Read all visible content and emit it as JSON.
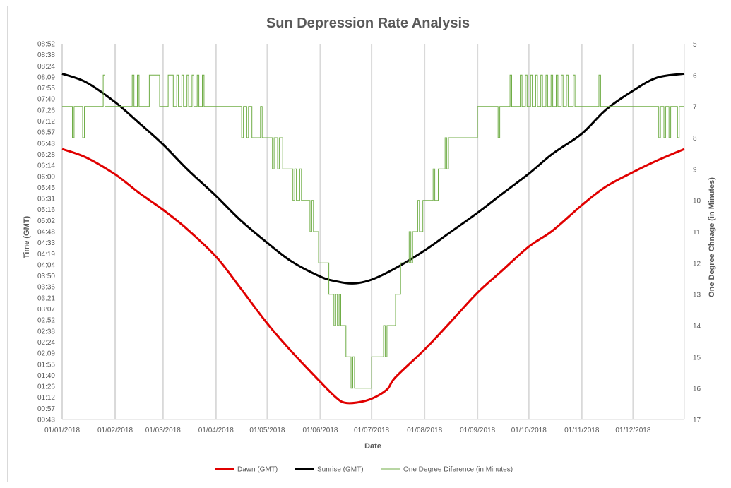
{
  "chart_data": {
    "type": "line",
    "title": "Sun Depression Rate Analysis",
    "xlabel": "Date",
    "ylabel_left": "Time (GMT)",
    "ylabel_right": "One Degree Chnage (in Minutes)",
    "x_ticks": [
      "01/01/2018",
      "01/02/2018",
      "01/03/2018",
      "01/04/2018",
      "01/05/2018",
      "01/06/2018",
      "01/07/2018",
      "01/08/2018",
      "01/09/2018",
      "01/10/2018",
      "01/11/2018",
      "01/12/2018"
    ],
    "y_left_ticks": [
      "08:52",
      "08:38",
      "08:24",
      "08:09",
      "07:55",
      "07:40",
      "07:26",
      "07:12",
      "06:57",
      "06:43",
      "06:28",
      "06:14",
      "06:00",
      "05:45",
      "05:31",
      "05:16",
      "05:02",
      "04:48",
      "04:33",
      "04:19",
      "04:04",
      "03:50",
      "03:36",
      "03:21",
      "03:07",
      "02:52",
      "02:38",
      "02:24",
      "02:09",
      "01:55",
      "01:40",
      "01:26",
      "01:12",
      "00:57",
      "00:43"
    ],
    "y_right_ticks": [
      "5",
      "6",
      "7",
      "8",
      "9",
      "10",
      "11",
      "12",
      "13",
      "14",
      "15",
      "16",
      "17"
    ],
    "y_right_range": [
      5,
      17
    ],
    "x_range_days": [
      1,
      365
    ],
    "grid": "vertical",
    "legend_position": "bottom",
    "series": [
      {
        "name": "Dawn (GMT)",
        "color": "#e00000",
        "axis": "left",
        "points": [
          [
            "01/01/2018",
            "06:35"
          ],
          [
            "15/01/2018",
            "06:24"
          ],
          [
            "01/02/2018",
            "06:02"
          ],
          [
            "15/02/2018",
            "05:38"
          ],
          [
            "01/03/2018",
            "05:16"
          ],
          [
            "15/03/2018",
            "04:51"
          ],
          [
            "01/04/2018",
            "04:15"
          ],
          [
            "15/04/2018",
            "03:35"
          ],
          [
            "01/05/2018",
            "02:48"
          ],
          [
            "15/05/2018",
            "02:12"
          ],
          [
            "01/06/2018",
            "01:32"
          ],
          [
            "10/06/2018",
            "01:12"
          ],
          [
            "15/06/2018",
            "01:05"
          ],
          [
            "22/06/2018",
            "01:05"
          ],
          [
            "01/07/2018",
            "01:10"
          ],
          [
            "10/07/2018",
            "01:22"
          ],
          [
            "15/07/2018",
            "01:38"
          ],
          [
            "01/08/2018",
            "02:14"
          ],
          [
            "15/08/2018",
            "02:47"
          ],
          [
            "01/09/2018",
            "03:28"
          ],
          [
            "15/09/2018",
            "03:56"
          ],
          [
            "01/10/2018",
            "04:28"
          ],
          [
            "15/10/2018",
            "04:49"
          ],
          [
            "01/11/2018",
            "05:22"
          ],
          [
            "15/11/2018",
            "05:46"
          ],
          [
            "01/12/2018",
            "06:05"
          ],
          [
            "15/12/2018",
            "06:20"
          ],
          [
            "31/12/2018",
            "06:35"
          ]
        ]
      },
      {
        "name": "Sunrise (GMT)",
        "color": "#000000",
        "axis": "left",
        "points": [
          [
            "01/01/2018",
            "08:13"
          ],
          [
            "15/01/2018",
            "08:02"
          ],
          [
            "01/02/2018",
            "07:36"
          ],
          [
            "15/02/2018",
            "07:09"
          ],
          [
            "01/03/2018",
            "06:41"
          ],
          [
            "15/03/2018",
            "06:09"
          ],
          [
            "01/04/2018",
            "05:34"
          ],
          [
            "15/04/2018",
            "05:03"
          ],
          [
            "01/05/2018",
            "04:33"
          ],
          [
            "15/05/2018",
            "04:09"
          ],
          [
            "01/06/2018",
            "03:49"
          ],
          [
            "10/06/2018",
            "03:43"
          ],
          [
            "20/06/2018",
            "03:40"
          ],
          [
            "01/07/2018",
            "03:45"
          ],
          [
            "15/07/2018",
            "04:00"
          ],
          [
            "01/08/2018",
            "04:23"
          ],
          [
            "15/08/2018",
            "04:45"
          ],
          [
            "01/09/2018",
            "05:12"
          ],
          [
            "15/09/2018",
            "05:36"
          ],
          [
            "01/10/2018",
            "06:03"
          ],
          [
            "15/10/2018",
            "06:29"
          ],
          [
            "01/11/2018",
            "06:55"
          ],
          [
            "15/11/2018",
            "07:26"
          ],
          [
            "01/12/2018",
            "07:51"
          ],
          [
            "15/12/2018",
            "08:08"
          ],
          [
            "31/12/2018",
            "08:13"
          ]
        ]
      },
      {
        "name": "One Degree Diference (in Minutes)",
        "color": "#70ad47",
        "axis": "right",
        "points": [
          [
            "01/01/2018",
            7
          ],
          [
            "06/01/2018",
            7
          ],
          [
            "07/01/2018",
            8
          ],
          [
            "08/01/2018",
            7
          ],
          [
            "12/01/2018",
            7
          ],
          [
            "13/01/2018",
            8
          ],
          [
            "14/01/2018",
            7
          ],
          [
            "24/01/2018",
            7
          ],
          [
            "25/01/2018",
            6
          ],
          [
            "26/01/2018",
            7
          ],
          [
            "10/02/2018",
            7
          ],
          [
            "11/02/2018",
            6
          ],
          [
            "12/02/2018",
            7
          ],
          [
            "14/02/2018",
            6
          ],
          [
            "15/02/2018",
            7
          ],
          [
            "20/02/2018",
            7
          ],
          [
            "21/02/2018",
            6
          ],
          [
            "26/02/2018",
            6
          ],
          [
            "27/02/2018",
            7
          ],
          [
            "03/03/2018",
            7
          ],
          [
            "04/03/2018",
            6
          ],
          [
            "06/03/2018",
            6
          ],
          [
            "07/03/2018",
            7
          ],
          [
            "09/03/2018",
            6
          ],
          [
            "10/03/2018",
            7
          ],
          [
            "12/03/2018",
            6
          ],
          [
            "13/03/2018",
            7
          ],
          [
            "15/03/2018",
            6
          ],
          [
            "16/03/2018",
            7
          ],
          [
            "18/03/2018",
            6
          ],
          [
            "19/03/2018",
            7
          ],
          [
            "21/03/2018",
            6
          ],
          [
            "22/03/2018",
            7
          ],
          [
            "24/03/2018",
            6
          ],
          [
            "25/03/2018",
            7
          ],
          [
            "15/04/2018",
            7
          ],
          [
            "16/04/2018",
            8
          ],
          [
            "17/04/2018",
            7
          ],
          [
            "19/04/2018",
            8
          ],
          [
            "20/04/2018",
            7
          ],
          [
            "22/04/2018",
            8
          ],
          [
            "26/04/2018",
            8
          ],
          [
            "27/04/2018",
            7
          ],
          [
            "28/04/2018",
            8
          ],
          [
            "03/05/2018",
            8
          ],
          [
            "04/05/2018",
            9
          ],
          [
            "05/05/2018",
            8
          ],
          [
            "07/05/2018",
            9
          ],
          [
            "08/05/2018",
            8
          ],
          [
            "10/05/2018",
            9
          ],
          [
            "15/05/2018",
            9
          ],
          [
            "16/05/2018",
            10
          ],
          [
            "17/05/2018",
            9
          ],
          [
            "18/05/2018",
            10
          ],
          [
            "20/05/2018",
            9
          ],
          [
            "21/05/2018",
            10
          ],
          [
            "25/05/2018",
            10
          ],
          [
            "26/05/2018",
            11
          ],
          [
            "27/05/2018",
            10
          ],
          [
            "28/05/2018",
            11
          ],
          [
            "30/05/2018",
            11
          ],
          [
            "31/05/2018",
            12
          ],
          [
            "05/06/2018",
            12
          ],
          [
            "06/06/2018",
            13
          ],
          [
            "08/06/2018",
            13
          ],
          [
            "09/06/2018",
            14
          ],
          [
            "10/06/2018",
            13
          ],
          [
            "11/06/2018",
            14
          ],
          [
            "12/06/2018",
            13
          ],
          [
            "13/06/2018",
            14
          ],
          [
            "15/06/2018",
            14
          ],
          [
            "16/06/2018",
            15
          ],
          [
            "18/06/2018",
            15
          ],
          [
            "19/06/2018",
            16
          ],
          [
            "20/06/2018",
            15
          ],
          [
            "21/06/2018",
            16
          ],
          [
            "30/06/2018",
            16
          ],
          [
            "01/07/2018",
            15
          ],
          [
            "07/07/2018",
            15
          ],
          [
            "08/07/2018",
            14
          ],
          [
            "09/07/2018",
            15
          ],
          [
            "10/07/2018",
            14
          ],
          [
            "14/07/2018",
            14
          ],
          [
            "15/07/2018",
            13
          ],
          [
            "17/07/2018",
            13
          ],
          [
            "18/07/2018",
            12
          ],
          [
            "22/07/2018",
            12
          ],
          [
            "23/07/2018",
            11
          ],
          [
            "24/07/2018",
            12
          ],
          [
            "25/07/2018",
            11
          ],
          [
            "27/07/2018",
            11
          ],
          [
            "28/07/2018",
            10
          ],
          [
            "29/07/2018",
            11
          ],
          [
            "30/07/2018",
            11
          ],
          [
            "31/07/2018",
            10
          ],
          [
            "05/08/2018",
            10
          ],
          [
            "06/08/2018",
            9
          ],
          [
            "07/08/2018",
            10
          ],
          [
            "09/08/2018",
            9
          ],
          [
            "12/08/2018",
            9
          ],
          [
            "13/08/2018",
            8
          ],
          [
            "14/08/2018",
            9
          ],
          [
            "15/08/2018",
            8
          ],
          [
            "31/08/2018",
            8
          ],
          [
            "01/09/2018",
            7
          ],
          [
            "12/09/2018",
            7
          ],
          [
            "13/09/2018",
            8
          ],
          [
            "14/09/2018",
            7
          ],
          [
            "19/09/2018",
            7
          ],
          [
            "20/09/2018",
            6
          ],
          [
            "21/09/2018",
            7
          ],
          [
            "25/09/2018",
            7
          ],
          [
            "26/09/2018",
            6
          ],
          [
            "27/09/2018",
            7
          ],
          [
            "29/09/2018",
            6
          ],
          [
            "30/09/2018",
            7
          ],
          [
            "02/10/2018",
            6
          ],
          [
            "03/10/2018",
            7
          ],
          [
            "05/10/2018",
            6
          ],
          [
            "06/10/2018",
            7
          ],
          [
            "08/10/2018",
            6
          ],
          [
            "09/10/2018",
            7
          ],
          [
            "11/10/2018",
            6
          ],
          [
            "12/10/2018",
            7
          ],
          [
            "14/10/2018",
            6
          ],
          [
            "15/10/2018",
            7
          ],
          [
            "17/10/2018",
            6
          ],
          [
            "18/10/2018",
            7
          ],
          [
            "20/10/2018",
            6
          ],
          [
            "21/10/2018",
            7
          ],
          [
            "23/10/2018",
            6
          ],
          [
            "24/10/2018",
            7
          ],
          [
            "27/10/2018",
            6
          ],
          [
            "28/10/2018",
            7
          ],
          [
            "10/11/2018",
            7
          ],
          [
            "11/11/2018",
            6
          ],
          [
            "12/11/2018",
            7
          ],
          [
            "15/12/2018",
            7
          ],
          [
            "16/12/2018",
            8
          ],
          [
            "17/12/2018",
            7
          ],
          [
            "19/12/2018",
            8
          ],
          [
            "20/12/2018",
            7
          ],
          [
            "22/12/2018",
            8
          ],
          [
            "23/12/2018",
            7
          ],
          [
            "26/12/2018",
            7
          ],
          [
            "27/12/2018",
            8
          ],
          [
            "28/12/2018",
            7
          ],
          [
            "31/12/2018",
            7
          ]
        ]
      }
    ]
  }
}
